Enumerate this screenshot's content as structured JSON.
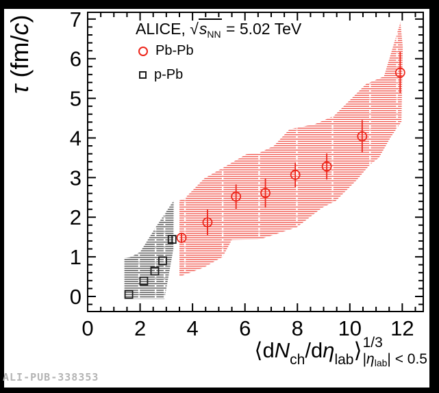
{
  "watermark": "ALI-PUB-338353",
  "colors": {
    "pbpb_red": "#ed2419",
    "ppb_black": "#1a1a1a",
    "frame": "#000000",
    "canvas": "#ffffff",
    "separator_white": "#ffffff",
    "watermark_gray": "#b4b4b4"
  },
  "legend": {
    "header": {
      "prefix": "ALICE, ",
      "sqrt": "√",
      "s": "s",
      "nn": "NN",
      "suffix": " = 5.02 TeV"
    },
    "entries": [
      {
        "label": "Pb-Pb",
        "marker": "open-circle"
      },
      {
        "label": "p-Pb",
        "marker": "open-square"
      }
    ]
  },
  "titles": {
    "y": {
      "tau": "τ",
      "mid": " (fm/",
      "c": "c",
      "close": ")"
    },
    "x": {
      "open": "⟨",
      "d1": "d",
      "N": "N",
      "ch": "ch",
      "slash": "/d",
      "eta": "η",
      "lab": "lab",
      "close": "⟩",
      "exp": "1/3",
      "cond_bar1": "|",
      "cond_eta": "η",
      "cond_lab": "lab",
      "cond_rest": "| < 0.5"
    }
  },
  "chart_data": {
    "type": "scatter",
    "title": "ALICE, √s_NN = 5.02 TeV",
    "xlabel": "⟨dN_ch/dη_lab⟩^{1/3}_{|η_lab| < 0.5}",
    "ylabel": "τ (fm/c)",
    "xlim": [
      0,
      12.8
    ],
    "ylim": [
      -0.38,
      7.17
    ],
    "x_major_ticks": [
      0,
      2,
      4,
      6,
      8,
      10,
      12
    ],
    "x_minor_step": 0.5,
    "y_major_ticks": [
      0,
      1,
      2,
      3,
      4,
      5,
      6,
      7
    ],
    "y_minor_step": 0.2,
    "grid": false,
    "legend_position": "top-left-inside",
    "series": [
      {
        "name": "Pb-Pb",
        "marker": "open-circle",
        "color": "#ed2419",
        "marker_size": 13,
        "points": [
          {
            "x": 3.58,
            "y": 1.48,
            "ey": 0.13
          },
          {
            "x": 4.57,
            "y": 1.87,
            "ey": 0.32
          },
          {
            "x": 5.66,
            "y": 2.52,
            "ey": 0.31
          },
          {
            "x": 6.78,
            "y": 2.61,
            "ey": 0.37
          },
          {
            "x": 7.92,
            "y": 3.07,
            "ey": 0.31
          },
          {
            "x": 9.12,
            "y": 3.28,
            "ey": 0.33
          },
          {
            "x": 10.47,
            "y": 4.04,
            "ey": 0.41
          },
          {
            "x": 11.92,
            "y": 5.65,
            "ey": 0.52
          }
        ],
        "band": [
          [
            3.5,
            0.5
          ],
          [
            4.45,
            0.74
          ],
          [
            5.15,
            1.0
          ],
          [
            5.5,
            1.43
          ],
          [
            6.55,
            1.44
          ],
          [
            7.98,
            1.75
          ],
          [
            8.94,
            2.24
          ],
          [
            9.46,
            2.41
          ],
          [
            10.25,
            2.93
          ],
          [
            10.77,
            3.33
          ],
          [
            11.11,
            3.5
          ],
          [
            11.56,
            4.02
          ],
          [
            11.97,
            4.41
          ],
          [
            12.02,
            6.3
          ],
          [
            11.93,
            6.92
          ],
          [
            11.3,
            5.55
          ],
          [
            10.62,
            5.36
          ],
          [
            9.4,
            4.56
          ],
          [
            8.68,
            4.35
          ],
          [
            7.7,
            4.22
          ],
          [
            7.1,
            3.8
          ],
          [
            6.54,
            3.62
          ],
          [
            6.05,
            3.59
          ],
          [
            5.46,
            3.36
          ],
          [
            4.45,
            2.98
          ],
          [
            3.71,
            2.48
          ],
          [
            3.5,
            2.42
          ]
        ],
        "band_separators": [
          3.71,
          5.15,
          6.54,
          7.98,
          9.34,
          10.77,
          11.8
        ]
      },
      {
        "name": "p-Pb",
        "marker": "open-square",
        "color": "#1a1a1a",
        "marker_size": 11,
        "points": [
          {
            "x": 1.57,
            "y": 0.05,
            "ey": 0
          },
          {
            "x": 2.14,
            "y": 0.39,
            "ey": 0
          },
          {
            "x": 2.56,
            "y": 0.64,
            "ey": 0
          },
          {
            "x": 2.86,
            "y": 0.9,
            "ey": 0
          },
          {
            "x": 3.22,
            "y": 1.44,
            "ey": 0.1
          }
        ],
        "band": [
          [
            1.4,
            -0.06
          ],
          [
            2.93,
            -0.06
          ],
          [
            3.27,
            1.2
          ],
          [
            3.28,
            2.42
          ],
          [
            2.6,
            1.75
          ],
          [
            2.0,
            1.12
          ],
          [
            1.62,
            0.99
          ],
          [
            1.4,
            0.97
          ]
        ],
        "band_separators": [
          1.96,
          2.59,
          2.93
        ]
      }
    ]
  }
}
